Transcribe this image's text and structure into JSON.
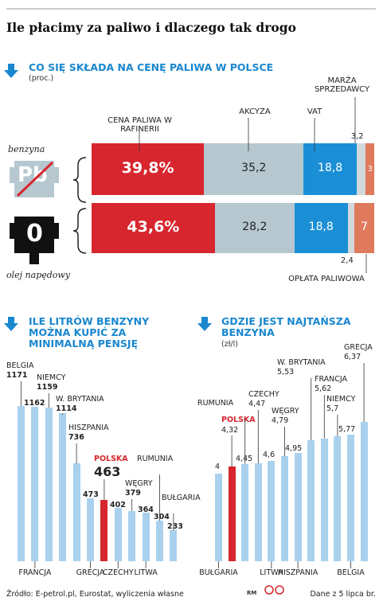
{
  "title": "Ile płacimy za paliwo i dlaczego tak drogo",
  "fuel_icons": [
    "Pb",
    "0"
  ],
  "chart_data": [
    {
      "type": "stacked-bar-horizontal",
      "title": "CO SIĘ SKŁADA NA CENĘ PALIWA W POLSCE",
      "subtitle": "(proc.)",
      "categories": [
        "benzyna",
        "olej napędowy"
      ],
      "series": [
        {
          "name": "CENA PALIWA W RAFINERII",
          "color": "#d7262e",
          "values": [
            39.8,
            43.6
          ],
          "value_labels": [
            "39,8%",
            "43,6%"
          ]
        },
        {
          "name": "AKCYZA",
          "color": "#b6c7cf",
          "values": [
            35.2,
            28.2
          ],
          "value_labels": [
            "35,2",
            "28,2"
          ]
        },
        {
          "name": "VAT",
          "color": "#1b8fd6",
          "values": [
            18.8,
            18.8
          ],
          "value_labels": [
            "18,8",
            "18,8"
          ]
        },
        {
          "name": "MARŻA SPRZEDAWCY",
          "color": "#d3d8db",
          "values": [
            3.2,
            2.4
          ],
          "value_labels": [
            "3,2",
            "2,4"
          ]
        },
        {
          "name": "OPŁATA PALIWOWA",
          "color": "#df7a5c",
          "values": [
            3,
            7
          ]
        }
      ]
    },
    {
      "type": "bar",
      "title": "ILE LITRÓW BENZYNY MOŻNA KUPIĆ ZA MINIMALNĄ PENSJĘ",
      "categories": [
        "BELGIA",
        "FRANCJA",
        "NIEMCY",
        "W. BRYTANIA",
        "HISZPANIA",
        "GRECJA",
        "POLSKA",
        "CZECHY",
        "WĘGRY",
        "LITWA",
        "RUMUNIA",
        "BUŁGARIA"
      ],
      "values": [
        1171,
        1162,
        1159,
        1114,
        736,
        473,
        463,
        402,
        379,
        364,
        304,
        233
      ],
      "color": "#a9d1ee",
      "highlight": {
        "category": "POLSKA",
        "color": "#d7262e"
      }
    },
    {
      "type": "bar",
      "title": "GDZIE JEST NAJTAŃSZA BENZYNA",
      "subtitle": "(zł/l)",
      "categories": [
        "BUŁGARIA",
        "POLSKA",
        "RUMUNIA",
        "CZECHY",
        "LITWA",
        "WĘGRY",
        "HISZPANIA",
        "W. BRYTANIA",
        "FRANCJA",
        "NIEMCY",
        "BELGIA",
        "GRECJA"
      ],
      "values": [
        4,
        4.32,
        4.45,
        4.47,
        4.6,
        4.79,
        4.95,
        5.53,
        5.62,
        5.7,
        5.77,
        6.37
      ],
      "value_labels": [
        "4",
        "4,32",
        "4,45",
        "4,47",
        "4,6",
        "4,79",
        "4,95",
        "5,53",
        "5,62",
        "5,7",
        "5,77",
        "6,37"
      ],
      "color": "#a9d1ee",
      "highlight": {
        "category": "POLSKA",
        "color": "#d7262e"
      }
    }
  ],
  "source": "Źródło: E-petrol.pl, Eurostat, wyliczenia własne",
  "credit": "RM",
  "date_note": "Dane z 5 lipca br."
}
